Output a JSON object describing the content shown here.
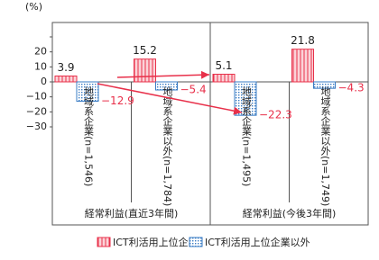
{
  "chart_data": {
    "type": "bar",
    "y_unit": "(%)",
    "categories": [
      "地域系企業(n=1,546)",
      "地域系企業以外(n=1,784)",
      "地域系企業(n=1,495)",
      "地域系企業以外(n=1,749)"
    ],
    "groups": [
      "経常利益(直近3年間)",
      "経常利益(今後3年間)"
    ],
    "series": [
      {
        "name": "ICT利活用上位企業",
        "color": "#e8304a",
        "values": [
          3.9,
          15.2,
          5.1,
          21.8
        ],
        "value_labels": [
          "3.9",
          "15.2",
          "5.1",
          "21.8"
        ]
      },
      {
        "name": "ICT利活用上位企業以外",
        "color": "#3a7cc4",
        "values": [
          -12.9,
          -5.4,
          -22.3,
          -4.3
        ],
        "value_labels": [
          "−12.9",
          "−5.4",
          "−22.3",
          "−4.3"
        ]
      }
    ],
    "ylim": [
      -30,
      30
    ],
    "yticks": [
      {
        "value": 30,
        "label": ""
      },
      20,
      10,
      0,
      {
        "value": -10,
        "label": "−10"
      },
      {
        "value": -20,
        "label": "−20"
      },
      {
        "value": -30,
        "label": "−30"
      }
    ]
  }
}
